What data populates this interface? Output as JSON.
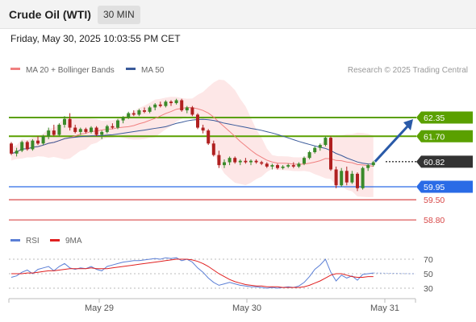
{
  "header": {
    "title": "Crude Oil (WTI)",
    "timeframe": "30 MIN",
    "datetime": "Friday, May 30, 2025 10:03:55 PM CET"
  },
  "legend": {
    "ma20": "MA 20 + Bollinger Bands",
    "ma50": "MA 50",
    "ma20_color": "#f08080",
    "ma50_color": "#3a5a9a",
    "credit": "Research © 2025 Trading Central"
  },
  "rsi_legend": {
    "rsi": "RSI",
    "ma9": "9MA",
    "rsi_color": "#5b7fd6",
    "ma9_color": "#e02020"
  },
  "chart_data": [
    {
      "type": "candlestick",
      "x_labels": [
        "May 29",
        "May 30",
        "May 31"
      ],
      "ylim": [
        58.5,
        63.3
      ],
      "levels": [
        {
          "label": "62.35",
          "value": 62.35,
          "kind": "resistance",
          "color": "#5aa000"
        },
        {
          "label": "61.70",
          "value": 61.7,
          "kind": "resistance",
          "color": "#5aa000"
        },
        {
          "label": "60.82",
          "value": 60.82,
          "kind": "last price",
          "color": "#333333"
        },
        {
          "label": "59.95",
          "value": 59.95,
          "kind": "pivot",
          "color": "#2a6be6"
        },
        {
          "label": "59.50",
          "value": 59.5,
          "kind": "support",
          "color": "#d84848"
        },
        {
          "label": "58.80",
          "value": 58.8,
          "kind": "support",
          "color": "#d84848"
        }
      ],
      "forecast": {
        "from": 60.82,
        "to": 62.35,
        "color": "#2a5aa8"
      },
      "candles": [
        [
          61.45,
          61.5,
          61.05,
          61.1
        ],
        [
          61.1,
          61.3,
          61.0,
          61.2
        ],
        [
          61.2,
          61.55,
          61.15,
          61.5
        ],
        [
          61.5,
          61.55,
          61.2,
          61.25
        ],
        [
          61.25,
          61.6,
          61.2,
          61.55
        ],
        [
          61.55,
          61.7,
          61.4,
          61.45
        ],
        [
          61.45,
          61.75,
          61.4,
          61.7
        ],
        [
          61.7,
          62.0,
          61.6,
          61.9
        ],
        [
          61.9,
          62.1,
          61.7,
          61.75
        ],
        [
          61.75,
          62.15,
          61.7,
          62.1
        ],
        [
          62.1,
          62.4,
          62.0,
          62.3
        ],
        [
          62.3,
          62.5,
          61.9,
          62.0
        ],
        [
          62.0,
          62.1,
          61.8,
          61.85
        ],
        [
          61.85,
          62.0,
          61.75,
          61.95
        ],
        [
          61.95,
          62.0,
          61.8,
          61.85
        ],
        [
          61.85,
          62.05,
          61.8,
          62.0
        ],
        [
          62.0,
          62.05,
          61.7,
          61.75
        ],
        [
          61.75,
          61.9,
          61.6,
          61.85
        ],
        [
          61.85,
          62.1,
          61.8,
          62.05
        ],
        [
          62.05,
          62.15,
          61.95,
          62.0
        ],
        [
          62.0,
          62.3,
          61.95,
          62.25
        ],
        [
          62.25,
          62.4,
          62.15,
          62.35
        ],
        [
          62.35,
          62.55,
          62.3,
          62.5
        ],
        [
          62.5,
          62.6,
          62.4,
          62.45
        ],
        [
          62.45,
          62.65,
          62.4,
          62.6
        ],
        [
          62.6,
          62.7,
          62.5,
          62.55
        ],
        [
          62.55,
          62.75,
          62.5,
          62.7
        ],
        [
          62.7,
          62.85,
          62.6,
          62.8
        ],
        [
          62.8,
          62.9,
          62.7,
          62.75
        ],
        [
          62.75,
          62.95,
          62.7,
          62.9
        ],
        [
          62.9,
          62.95,
          62.75,
          62.85
        ],
        [
          62.85,
          63.0,
          62.8,
          62.95
        ],
        [
          62.95,
          63.0,
          62.55,
          62.6
        ],
        [
          62.6,
          62.75,
          62.5,
          62.7
        ],
        [
          62.7,
          62.75,
          62.4,
          62.45
        ],
        [
          62.45,
          62.5,
          61.95,
          62.0
        ],
        [
          62.0,
          62.1,
          61.8,
          61.9
        ],
        [
          61.9,
          61.95,
          61.4,
          61.45
        ],
        [
          61.45,
          61.55,
          61.0,
          61.05
        ],
        [
          61.05,
          61.2,
          60.6,
          60.7
        ],
        [
          60.7,
          60.9,
          60.6,
          60.8
        ],
        [
          60.8,
          61.0,
          60.7,
          60.95
        ],
        [
          60.95,
          61.0,
          60.75,
          60.8
        ],
        [
          60.8,
          60.9,
          60.7,
          60.85
        ],
        [
          60.85,
          60.95,
          60.75,
          60.8
        ],
        [
          60.8,
          60.9,
          60.7,
          60.85
        ],
        [
          60.85,
          60.9,
          60.75,
          60.8
        ],
        [
          60.8,
          60.85,
          60.7,
          60.75
        ],
        [
          60.75,
          60.8,
          60.6,
          60.65
        ],
        [
          60.65,
          60.75,
          60.55,
          60.7
        ],
        [
          60.7,
          60.75,
          60.55,
          60.6
        ],
        [
          60.6,
          60.7,
          60.55,
          60.65
        ],
        [
          60.65,
          60.75,
          60.6,
          60.7
        ],
        [
          60.7,
          60.8,
          60.6,
          60.65
        ],
        [
          60.65,
          60.8,
          60.6,
          60.75
        ],
        [
          60.75,
          61.0,
          60.7,
          60.95
        ],
        [
          60.95,
          61.2,
          60.9,
          61.15
        ],
        [
          61.15,
          61.35,
          61.1,
          61.3
        ],
        [
          61.3,
          61.45,
          61.2,
          61.4
        ],
        [
          61.4,
          61.7,
          61.35,
          61.65
        ],
        [
          61.65,
          61.7,
          60.5,
          60.55
        ],
        [
          60.55,
          60.65,
          59.9,
          60.0
        ],
        [
          60.0,
          60.6,
          59.95,
          60.5
        ],
        [
          60.5,
          60.65,
          60.0,
          60.1
        ],
        [
          60.1,
          60.5,
          60.05,
          60.4
        ],
        [
          60.4,
          60.45,
          59.8,
          59.9
        ],
        [
          59.9,
          60.65,
          59.85,
          60.6
        ],
        [
          60.6,
          60.75,
          60.5,
          60.7
        ],
        [
          60.7,
          60.85,
          60.65,
          60.8
        ]
      ]
    },
    {
      "type": "line",
      "title": "RSI",
      "yticks": [
        70,
        50,
        30
      ],
      "series": [
        {
          "name": "RSI",
          "values": [
            45,
            47,
            52,
            55,
            50,
            56,
            58,
            60,
            54,
            60,
            64,
            58,
            56,
            58,
            57,
            60,
            56,
            54,
            60,
            62,
            64,
            66,
            67,
            68,
            68,
            69,
            70,
            71,
            70,
            72,
            71,
            72,
            68,
            70,
            66,
            58,
            52,
            44,
            38,
            34,
            36,
            38,
            36,
            34,
            33,
            32,
            32,
            31,
            30,
            31,
            30,
            31,
            32,
            31,
            33,
            38,
            46,
            56,
            62,
            70,
            52,
            40,
            48,
            44,
            47,
            41,
            49,
            50,
            51
          ]
        },
        {
          "name": "9MA",
          "values": [
            50,
            50,
            50,
            51,
            51,
            52,
            53,
            54,
            54,
            55,
            56,
            57,
            57,
            57,
            57,
            58,
            57,
            57,
            57,
            58,
            59,
            60,
            61,
            62,
            63,
            64,
            65,
            66,
            67,
            68,
            69,
            70,
            70,
            70,
            69,
            67,
            64,
            60,
            55,
            50,
            46,
            42,
            39,
            37,
            35,
            34,
            33,
            33,
            32,
            32,
            32,
            31,
            31,
            31,
            31,
            32,
            34,
            37,
            40,
            44,
            48,
            50,
            50,
            48,
            46,
            45,
            45,
            46,
            46
          ]
        }
      ]
    }
  ]
}
